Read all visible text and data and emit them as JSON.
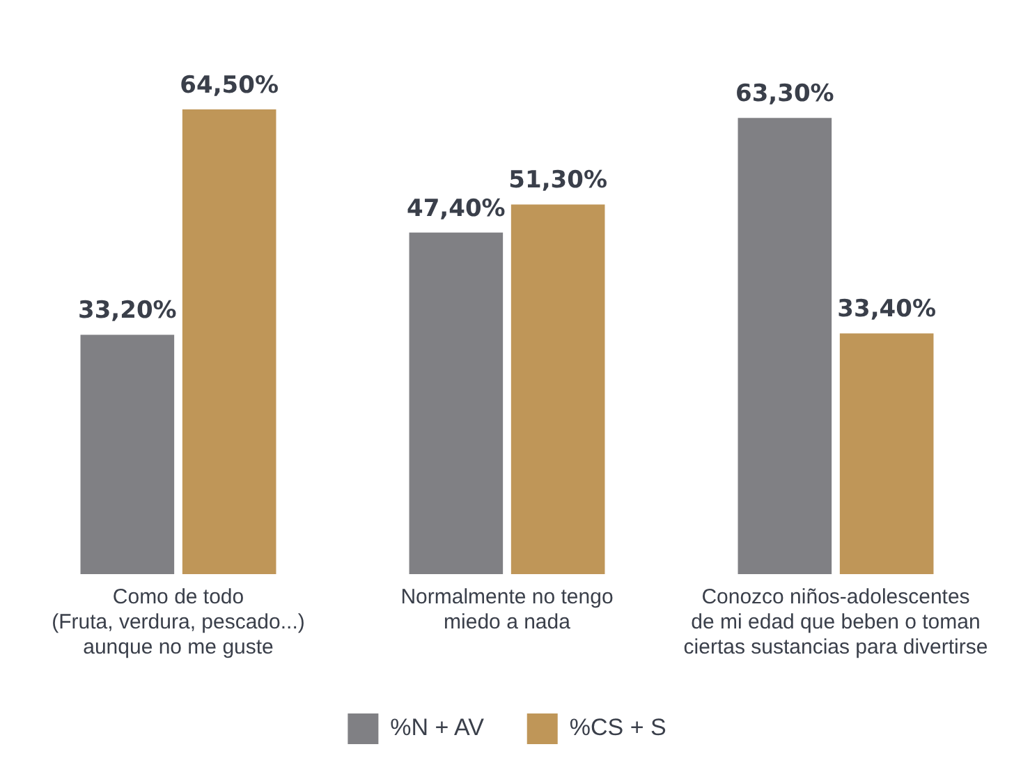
{
  "chart_data": {
    "type": "bar",
    "categories": [
      "Como de todo\n(Fruta, verdura, pescado...)\naunque no me guste",
      "Normalmente no tengo\nmiedo a nada",
      "Conozco niños-adolescentes\nde mi edad que beben o toman\nciertas sustancias para divertirse"
    ],
    "series": [
      {
        "name": "%N + AV",
        "color": "#808084",
        "values": [
          33.2,
          47.4,
          63.3
        ],
        "value_labels": [
          "33,20%",
          "47,40%",
          "63,30%"
        ]
      },
      {
        "name": "%CS + S",
        "color": "#bf9658",
        "values": [
          64.5,
          51.3,
          33.4
        ],
        "value_labels": [
          "64,50%",
          "51,30%",
          "33,40%"
        ]
      }
    ],
    "legend": "bottom",
    "grid": false
  }
}
